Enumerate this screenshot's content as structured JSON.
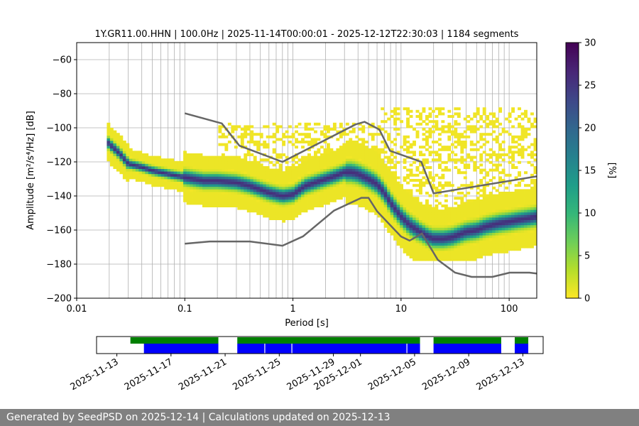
{
  "chart_data": [
    {
      "type": "heatmap",
      "title": "1Y.GR11.00.HHN | 100.0Hz | 2025-11-14T00:00:01 - 2025-12-12T22:30:03 | 1184 segments",
      "xlabel": "Period [s]",
      "ylabel": "Amplitude [m²/s⁴/Hz] [dB]",
      "xscale": "log",
      "xlim": [
        0.01,
        180
      ],
      "ylim": [
        -200,
        -50
      ],
      "x_ticks": [
        0.01,
        0.1,
        1,
        10,
        100
      ],
      "x_tick_labels": [
        "0.01",
        "0.1",
        "1",
        "10",
        "100"
      ],
      "y_ticks": [
        -200,
        -180,
        -160,
        -140,
        -120,
        -100,
        -80,
        -60
      ],
      "y_tick_labels": [
        "−200",
        "−180",
        "−160",
        "−140",
        "−120",
        "−100",
        "−80",
        "−60"
      ],
      "grid": true,
      "colorbar": {
        "label": "[%]",
        "range": [
          0,
          30
        ],
        "ticks": [
          0,
          5,
          10,
          15,
          20,
          25,
          30
        ],
        "tick_labels": [
          "0",
          "5",
          "10",
          "15",
          "20",
          "25",
          "30"
        ],
        "colormap": "viridis_r",
        "stops": [
          "#fde725",
          "#b5de2b",
          "#6ece58",
          "#35b779",
          "#1f9e89",
          "#26828e",
          "#31688e",
          "#3e4989",
          "#482878",
          "#440154"
        ]
      },
      "psd_mode": {
        "period": [
          0.019,
          0.025,
          0.03,
          0.04,
          0.05,
          0.07,
          0.1,
          0.15,
          0.2,
          0.3,
          0.4,
          0.6,
          0.8,
          1,
          1.3,
          1.8,
          2.5,
          3,
          3.5,
          4,
          5,
          6,
          7,
          8,
          10,
          12,
          15,
          18,
          20,
          25,
          30,
          40,
          50,
          60,
          80,
          100,
          120,
          150,
          180
        ],
        "db": [
          -108,
          -115,
          -121,
          -123,
          -125,
          -127,
          -129,
          -131,
          -131,
          -132,
          -134,
          -138,
          -140,
          -139,
          -134,
          -131,
          -128,
          -126,
          -126,
          -127,
          -130,
          -133,
          -138,
          -144,
          -152,
          -157,
          -161,
          -164,
          -165,
          -165,
          -164,
          -161,
          -160,
          -158,
          -156,
          -155,
          -154,
          -153,
          -152
        ]
      },
      "noise_models": {
        "color": "#666666",
        "nhnm": {
          "period": [
            0.1,
            0.22,
            0.32,
            0.8,
            3.8,
            4.6,
            6.3,
            7.9,
            15.4,
            20,
            180
          ],
          "db": [
            -91.5,
            -97.4,
            -110.5,
            -120,
            -98,
            -96.5,
            -101,
            -113.5,
            -120,
            -138.5,
            -128.5
          ]
        },
        "nlnm": {
          "period": [
            0.1,
            0.17,
            0.4,
            0.8,
            1.24,
            2.4,
            4.3,
            5,
            6,
            10,
            12,
            15.6,
            21.9,
            31.6,
            45,
            70,
            101,
            154,
            180
          ],
          "db": [
            -168,
            -166.7,
            -166.7,
            -169.2,
            -163.7,
            -148.6,
            -141.1,
            -141.1,
            -149,
            -163.8,
            -166.2,
            -162.1,
            -177.5,
            -185,
            -187.5,
            -187.5,
            -185,
            -185,
            -185.5
          ]
        }
      }
    },
    {
      "type": "timeline",
      "date_tick_labels": [
        "2025-11-13",
        "2025-11-17",
        "2025-11-21",
        "2025-11-25",
        "2025-11-29",
        "2025-12-01",
        "2025-12-05",
        "2025-12-09",
        "2025-12-13"
      ],
      "date_ticks": [
        "2025-11-13",
        "2025-11-17",
        "2025-11-21",
        "2025-11-25",
        "2025-11-29",
        "2025-12-01",
        "2025-12-05",
        "2025-12-09",
        "2025-12-13"
      ],
      "xlim": [
        "2025-11-11.5",
        "2025-12-14.5"
      ],
      "data_color": "#008000",
      "psd_color": "#0000ff",
      "data_intervals": [
        [
          "2025-11-14.0",
          "2025-11-20.5"
        ],
        [
          "2025-11-21.9",
          "2025-12-05.4"
        ],
        [
          "2025-12-06.4",
          "2025-12-11.4"
        ],
        [
          "2025-12-12.4",
          "2025-12-13.4"
        ]
      ],
      "psd_intervals": [
        [
          "2025-11-15.0",
          "2025-11-20.5"
        ],
        [
          "2025-11-21.9",
          "2025-12-05.4"
        ],
        [
          "2025-12-06.4",
          "2025-12-11.4"
        ],
        [
          "2025-12-12.4",
          "2025-12-13.4"
        ]
      ],
      "psd_gaps": [
        "2025-11-23.9",
        "2025-11-25.9",
        "2025-12-04.4"
      ]
    }
  ],
  "footer_text": "Generated by SeedPSD on 2025-12-14 | Calculations updated on 2025-12-13"
}
